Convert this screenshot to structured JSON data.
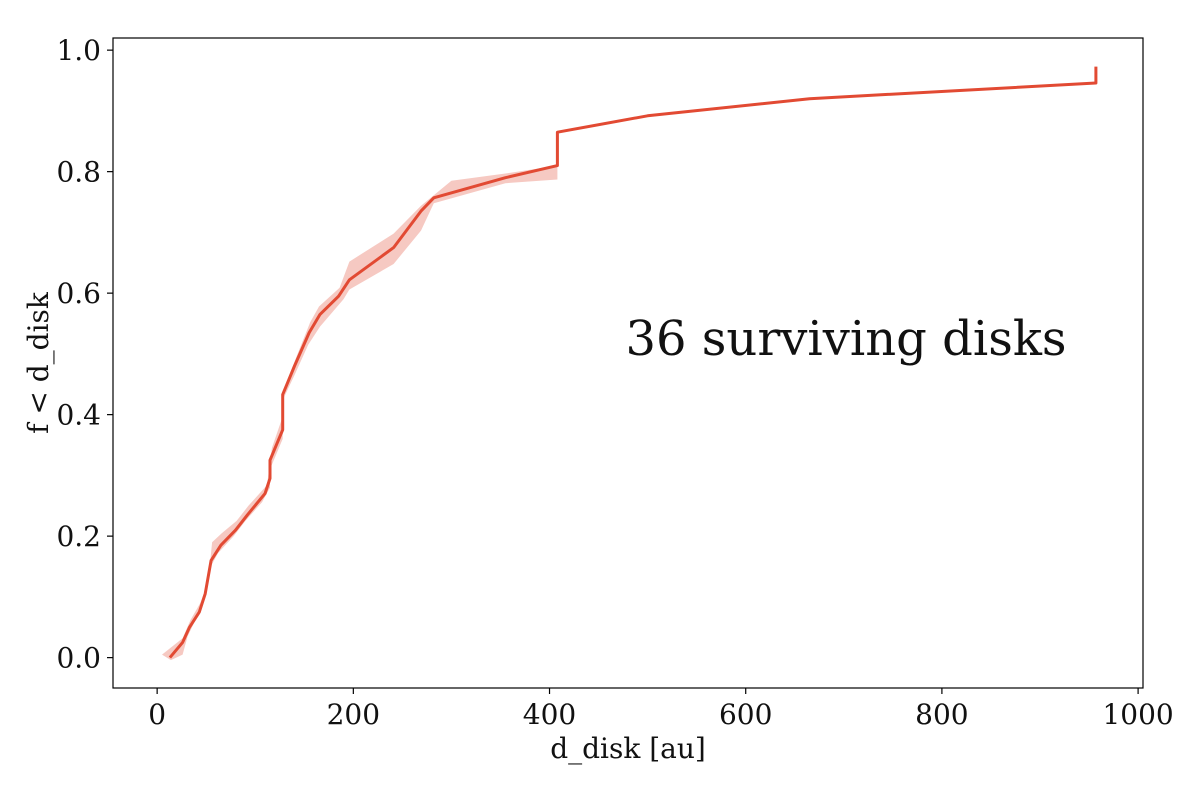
{
  "chart_data": {
    "type": "line",
    "title": "",
    "xlabel": "d_disk [au]",
    "ylabel": "f < d_disk",
    "xlim": [
      -45,
      1005
    ],
    "ylim": [
      -0.05,
      1.02
    ],
    "x_ticks": [
      0,
      200,
      400,
      600,
      800,
      1000
    ],
    "y_ticks": [
      0.0,
      0.2,
      0.4,
      0.6,
      0.8,
      1.0
    ],
    "x_tick_labels": [
      "0",
      "200",
      "400",
      "600",
      "800",
      "1000"
    ],
    "y_tick_labels": [
      "0.0",
      "0.2",
      "0.4",
      "0.6",
      "0.8",
      "1.0"
    ],
    "annotation": "36 surviving disks",
    "grid": false,
    "series": [
      {
        "color": "#e24a33",
        "points": [
          [
            13,
            0.0
          ],
          [
            26,
            0.025
          ],
          [
            33,
            0.05
          ],
          [
            43,
            0.075
          ],
          [
            49,
            0.105
          ],
          [
            55,
            0.16
          ],
          [
            65,
            0.185
          ],
          [
            80,
            0.21
          ],
          [
            92,
            0.235
          ],
          [
            110,
            0.27
          ],
          [
            115,
            0.295
          ],
          [
            115,
            0.325
          ],
          [
            128,
            0.375
          ],
          [
            128,
            0.433
          ],
          [
            140,
            0.48
          ],
          [
            155,
            0.535
          ],
          [
            166,
            0.565
          ],
          [
            185,
            0.595
          ],
          [
            196,
            0.622
          ],
          [
            241,
            0.675
          ],
          [
            269,
            0.735
          ],
          [
            282,
            0.757
          ],
          [
            355,
            0.79
          ],
          [
            408,
            0.81
          ],
          [
            408,
            0.865
          ],
          [
            500,
            0.892
          ],
          [
            665,
            0.92
          ],
          [
            957,
            0.946
          ],
          [
            957,
            0.973
          ]
        ]
      }
    ],
    "band": {
      "color": "#f6c9c2",
      "upper": [
        [
          5,
          0.005
        ],
        [
          26,
          0.032
        ],
        [
          34,
          0.062
        ],
        [
          44,
          0.09
        ],
        [
          52,
          0.125
        ],
        [
          56,
          0.19
        ],
        [
          66,
          0.205
        ],
        [
          81,
          0.225
        ],
        [
          93,
          0.25
        ],
        [
          112,
          0.284
        ],
        [
          117,
          0.345
        ],
        [
          128,
          0.397
        ],
        [
          130,
          0.445
        ],
        [
          142,
          0.495
        ],
        [
          156,
          0.552
        ],
        [
          165,
          0.578
        ],
        [
          186,
          0.609
        ],
        [
          196,
          0.652
        ],
        [
          241,
          0.698
        ],
        [
          269,
          0.744
        ],
        [
          300,
          0.785
        ],
        [
          355,
          0.797
        ],
        [
          408,
          0.81
        ]
      ],
      "lower": [
        [
          408,
          0.787
        ],
        [
          355,
          0.781
        ],
        [
          282,
          0.748
        ],
        [
          269,
          0.703
        ],
        [
          241,
          0.648
        ],
        [
          196,
          0.606
        ],
        [
          190,
          0.59
        ],
        [
          166,
          0.545
        ],
        [
          154,
          0.515
        ],
        [
          140,
          0.465
        ],
        [
          128,
          0.424
        ],
        [
          128,
          0.36
        ],
        [
          115,
          0.31
        ],
        [
          115,
          0.28
        ],
        [
          107,
          0.256
        ],
        [
          90,
          0.225
        ],
        [
          78,
          0.2
        ],
        [
          62,
          0.172
        ],
        [
          53,
          0.145
        ],
        [
          47,
          0.095
        ],
        [
          39,
          0.062
        ],
        [
          31,
          0.035
        ],
        [
          26,
          0.005
        ],
        [
          14,
          -0.004
        ]
      ]
    }
  }
}
